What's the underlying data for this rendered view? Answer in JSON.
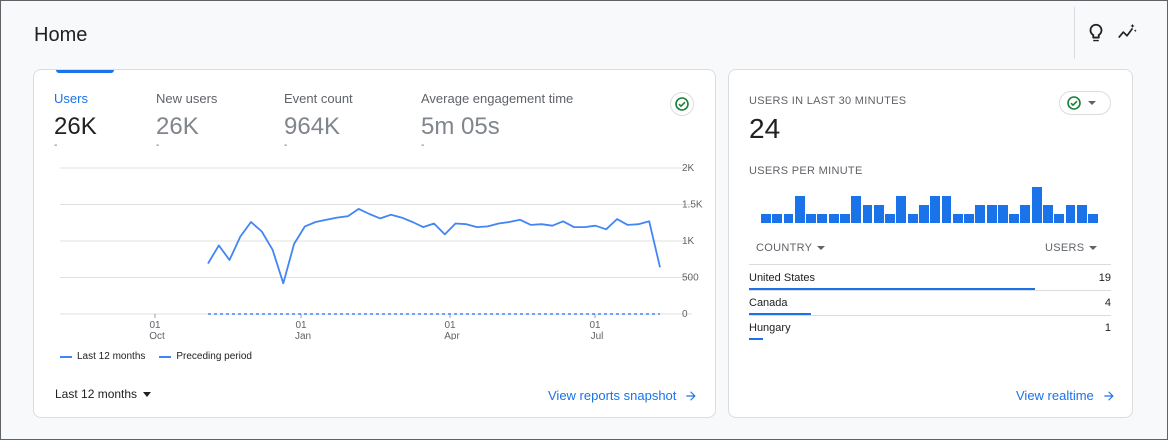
{
  "header": {
    "title": "Home",
    "icons": [
      "lightbulb-icon",
      "insights-icon"
    ]
  },
  "main_card": {
    "metrics": [
      {
        "label": "Users",
        "value": "26K",
        "delta": "-",
        "active": true
      },
      {
        "label": "New users",
        "value": "26K",
        "delta": "-",
        "active": false
      },
      {
        "label": "Event count",
        "value": "964K",
        "delta": "-",
        "active": false
      },
      {
        "label": "Average engagement time",
        "value": "5m 05s",
        "delta": "-",
        "active": false
      }
    ],
    "legend": {
      "current": "Last 12 months",
      "previous": "Preceding period"
    },
    "date_range": "Last 12 months",
    "link": "View reports snapshot"
  },
  "chart_data": {
    "type": "line",
    "y_ticks": [
      "2K",
      "1.5K",
      "1K",
      "500",
      "0"
    ],
    "ylim": [
      0,
      2000
    ],
    "x_ticks": [
      {
        "day": "01",
        "month": "Oct"
      },
      {
        "day": "01",
        "month": "Jan"
      },
      {
        "day": "01",
        "month": "Apr"
      },
      {
        "day": "01",
        "month": "Jul"
      }
    ],
    "series": [
      {
        "name": "Last 12 months",
        "style": "solid",
        "values": [
          690,
          940,
          740,
          1060,
          1260,
          1130,
          880,
          420,
          960,
          1200,
          1260,
          1290,
          1320,
          1340,
          1440,
          1370,
          1310,
          1360,
          1320,
          1260,
          1190,
          1240,
          1090,
          1240,
          1230,
          1190,
          1200,
          1240,
          1260,
          1290,
          1220,
          1230,
          1210,
          1270,
          1190,
          1190,
          1210,
          1160,
          1300,
          1220,
          1230,
          1270,
          640
        ]
      },
      {
        "name": "Preceding period",
        "style": "dashed",
        "values": [
          0,
          0
        ]
      }
    ],
    "grid": true,
    "colors": {
      "line": "#4285f4",
      "grid": "#e0e0e0"
    }
  },
  "realtime_card": {
    "title": "USERS IN LAST 30 MINUTES",
    "count": "24",
    "subtitle": "USERS PER MINUTE",
    "per_minute": [
      1,
      1,
      1,
      3,
      1,
      1,
      1,
      1,
      3,
      2,
      2,
      1,
      3,
      1,
      2,
      3,
      3,
      1,
      1,
      2,
      2,
      2,
      1,
      2,
      4,
      2,
      1,
      2,
      2,
      1
    ],
    "table": {
      "col_country": "COUNTRY",
      "col_users": "USERS",
      "rows": [
        {
          "country": "United States",
          "users": "19",
          "share": 0.79
        },
        {
          "country": "Canada",
          "users": "4",
          "share": 0.17
        },
        {
          "country": "Hungary",
          "users": "1",
          "share": 0.04
        }
      ]
    },
    "link": "View realtime"
  },
  "colors": {
    "accent": "#1a73e8",
    "check_green": "#188038"
  }
}
